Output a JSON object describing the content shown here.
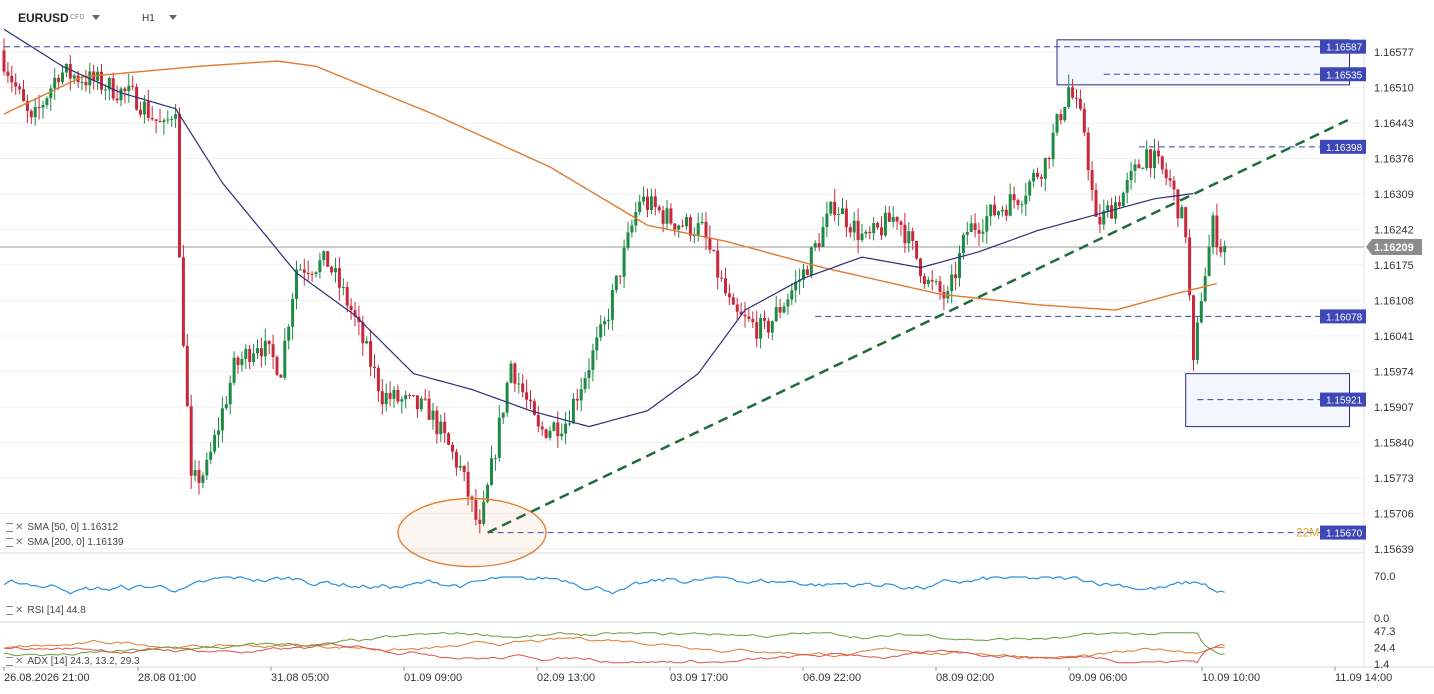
{
  "header": {
    "symbol": "EURUSD",
    "instrument_type": "CFD",
    "timeframe": "H1"
  },
  "legends": {
    "sma50": "SMA [50, 0] 1.16312",
    "sma200": "SMA [200, 0] 1.16139",
    "rsi": "RSI [14] 44.8",
    "adx": "ADX [14] 24.3, 13.2, 29.3"
  },
  "price_axis_labels": [
    "1.16577",
    "1.16510",
    "1.16443",
    "1.16376",
    "1.16309",
    "1.16242",
    "1.16175",
    "1.16108",
    "1.16041",
    "1.15974",
    "1.15907",
    "1.15840",
    "1.15773",
    "1.15706",
    "1.15639"
  ],
  "rsi_axis_labels": [
    "70.0",
    "0.0"
  ],
  "adx_axis_labels": [
    "47.3",
    "24.4",
    "1.4"
  ],
  "time_labels": [
    "26.08.2026 21:00",
    "28.08 01:00",
    "31.08 05:00",
    "01.09 09:00",
    "02.09 13:00",
    "03.09 17:00",
    "06.09 22:00",
    "08.09 02:00",
    "09.09 06:00",
    "10.09 10:00",
    "11.09 14:00"
  ],
  "price_tags": [
    {
      "label": "1.16587",
      "kind": "level"
    },
    {
      "label": "1.16535",
      "kind": "level"
    },
    {
      "label": "1.16398",
      "kind": "level"
    },
    {
      "label": "1.16209",
      "kind": "current"
    },
    {
      "label": "1.16078",
      "kind": "level"
    },
    {
      "label": "1.15921",
      "kind": "level"
    },
    {
      "label": "1.15670",
      "kind": "level"
    }
  ],
  "annotation_text": "22M",
  "colors": {
    "bull": "#1f8a46",
    "bear": "#c8283a",
    "sma50": "#2b2f7a",
    "sma200": "#e07b2e",
    "trendline": "#1e6b3c",
    "level_line": "#3a45a8",
    "tag_bg": "#3d47b5",
    "current_tag": "#8c8c8c",
    "rsi": "#2a8fe0",
    "adx": "#e07b2e",
    "dmi_plus": "#6b9a3a",
    "dmi_minus": "#d9534f"
  },
  "chart_data": {
    "type": "candlestick",
    "symbol": "EURUSD",
    "timeframe": "H1",
    "ylim": [
      1.15639,
      1.166
    ],
    "current_price": 1.16209,
    "levels": [
      1.16587,
      1.16535,
      1.16398,
      1.16078,
      1.15921,
      1.1567
    ],
    "anchors": [
      {
        "i": 0,
        "p": 1.1658
      },
      {
        "i": 8,
        "p": 1.1644
      },
      {
        "i": 15,
        "p": 1.1654
      },
      {
        "i": 25,
        "p": 1.1652
      },
      {
        "i": 35,
        "p": 1.1649
      },
      {
        "i": 42,
        "p": 1.1643
      },
      {
        "i": 45,
        "p": 1.1648
      },
      {
        "i": 46,
        "p": 1.1618
      },
      {
        "i": 49,
        "p": 1.1576
      },
      {
        "i": 53,
        "p": 1.1579
      },
      {
        "i": 60,
        "p": 1.1598
      },
      {
        "i": 66,
        "p": 1.1603
      },
      {
        "i": 72,
        "p": 1.1598
      },
      {
        "i": 76,
        "p": 1.1617
      },
      {
        "i": 84,
        "p": 1.1618
      },
      {
        "i": 90,
        "p": 1.1609
      },
      {
        "i": 98,
        "p": 1.1593
      },
      {
        "i": 110,
        "p": 1.159
      },
      {
        "i": 118,
        "p": 1.1579
      },
      {
        "i": 123,
        "p": 1.1567
      },
      {
        "i": 131,
        "p": 1.1599
      },
      {
        "i": 138,
        "p": 1.1586
      },
      {
        "i": 145,
        "p": 1.1588
      },
      {
        "i": 155,
        "p": 1.1606
      },
      {
        "i": 164,
        "p": 1.163
      },
      {
        "i": 172,
        "p": 1.1626
      },
      {
        "i": 180,
        "p": 1.1624
      },
      {
        "i": 188,
        "p": 1.1608
      },
      {
        "i": 196,
        "p": 1.1605
      },
      {
        "i": 206,
        "p": 1.1616
      },
      {
        "i": 214,
        "p": 1.1629
      },
      {
        "i": 222,
        "p": 1.1622
      },
      {
        "i": 230,
        "p": 1.1627
      },
      {
        "i": 238,
        "p": 1.1614
      },
      {
        "i": 243,
        "p": 1.1611
      },
      {
        "i": 248,
        "p": 1.1624
      },
      {
        "i": 256,
        "p": 1.1628
      },
      {
        "i": 262,
        "p": 1.1631
      },
      {
        "i": 268,
        "p": 1.1637
      },
      {
        "i": 274,
        "p": 1.1651
      },
      {
        "i": 278,
        "p": 1.1643
      },
      {
        "i": 281,
        "p": 1.1625
      },
      {
        "i": 288,
        "p": 1.1631
      },
      {
        "i": 294,
        "p": 1.1639
      },
      {
        "i": 300,
        "p": 1.1633
      },
      {
        "i": 304,
        "p": 1.1624
      },
      {
        "i": 306,
        "p": 1.1598
      },
      {
        "i": 308,
        "p": 1.1612
      },
      {
        "i": 311,
        "p": 1.1625
      },
      {
        "i": 313,
        "p": 1.1621
      }
    ],
    "sma50": [
      {
        "i": 0,
        "p": 1.1662
      },
      {
        "i": 15,
        "p": 1.1655
      },
      {
        "i": 30,
        "p": 1.165
      },
      {
        "i": 44,
        "p": 1.1647
      },
      {
        "i": 56,
        "p": 1.1633
      },
      {
        "i": 75,
        "p": 1.1616
      },
      {
        "i": 90,
        "p": 1.1608
      },
      {
        "i": 105,
        "p": 1.1597
      },
      {
        "i": 120,
        "p": 1.1594
      },
      {
        "i": 135,
        "p": 1.159
      },
      {
        "i": 150,
        "p": 1.1587
      },
      {
        "i": 165,
        "p": 1.159
      },
      {
        "i": 178,
        "p": 1.1597
      },
      {
        "i": 190,
        "p": 1.1609
      },
      {
        "i": 205,
        "p": 1.1615
      },
      {
        "i": 220,
        "p": 1.1619
      },
      {
        "i": 235,
        "p": 1.1617
      },
      {
        "i": 250,
        "p": 1.162
      },
      {
        "i": 265,
        "p": 1.1624
      },
      {
        "i": 280,
        "p": 1.1627
      },
      {
        "i": 295,
        "p": 1.163
      },
      {
        "i": 305,
        "p": 1.1631
      }
    ],
    "sma200": [
      {
        "i": 0,
        "p": 1.1646
      },
      {
        "i": 20,
        "p": 1.1653
      },
      {
        "i": 50,
        "p": 1.1655
      },
      {
        "i": 70,
        "p": 1.1656
      },
      {
        "i": 80,
        "p": 1.1655
      },
      {
        "i": 110,
        "p": 1.1646
      },
      {
        "i": 140,
        "p": 1.1636
      },
      {
        "i": 165,
        "p": 1.1625
      },
      {
        "i": 185,
        "p": 1.1622
      },
      {
        "i": 210,
        "p": 1.1617
      },
      {
        "i": 240,
        "p": 1.1612
      },
      {
        "i": 265,
        "p": 1.161
      },
      {
        "i": 285,
        "p": 1.1609
      },
      {
        "i": 300,
        "p": 1.1612
      },
      {
        "i": 311,
        "p": 1.1614
      }
    ],
    "trendline": [
      {
        "i": 124,
        "p": 1.1567
      },
      {
        "i": 345,
        "p": 1.1645
      }
    ],
    "zones": [
      {
        "i0": 270,
        "i1": 345,
        "top": 1.166,
        "bottom": 1.16515
      },
      {
        "i0": 303,
        "i1": 345,
        "top": 1.1597,
        "bottom": 1.1587
      }
    ],
    "ellipse_center": {
      "i": 120,
      "p": 1.1567
    },
    "rsi_last": 44.8,
    "adx_last": [
      24.3,
      13.2,
      29.3
    ]
  }
}
